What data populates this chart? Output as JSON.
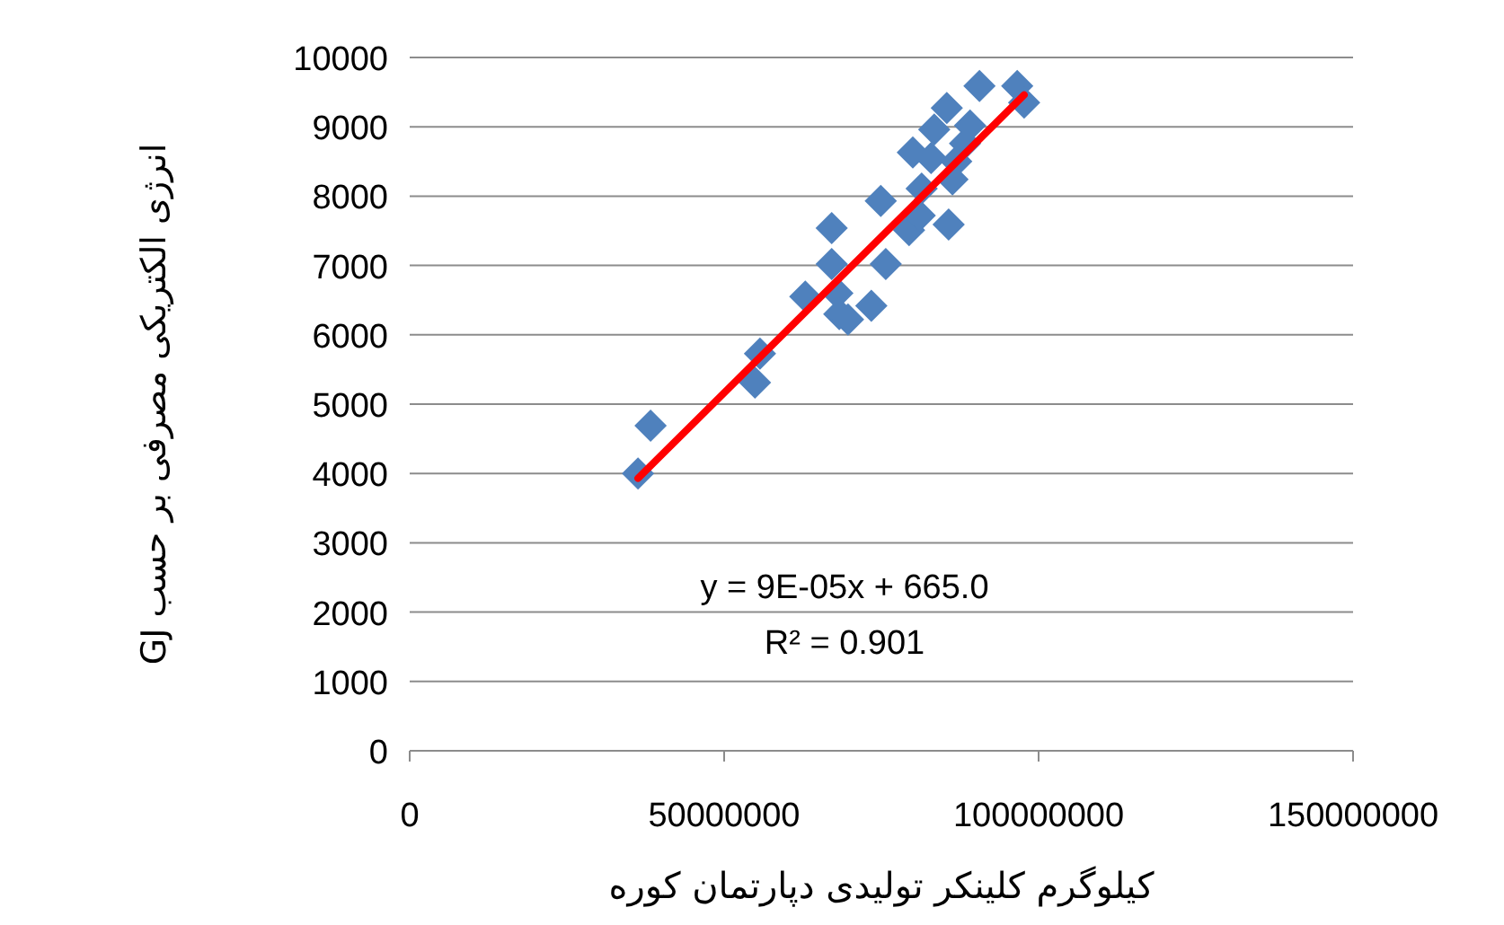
{
  "chart_data": {
    "type": "scatter",
    "xlabel": "کیلوگرم کلینکر تولیدی دپارتمان کوره",
    "ylabel": "انرژی الکتریکی مصرفی  بر حسب GJ",
    "xlim": [
      0,
      150000000
    ],
    "xticks": [
      0,
      50000000,
      100000000,
      150000000
    ],
    "ylim": [
      0,
      10000
    ],
    "yticks": [
      0,
      1000,
      2000,
      3000,
      4000,
      5000,
      6000,
      7000,
      8000,
      9000,
      10000
    ],
    "grid": "y",
    "annotations": [
      "y = 9E-05x + 665.0",
      "R² = 0.901"
    ],
    "series": [
      {
        "marker": "diamond",
        "color": "#4f81bd",
        "x": [
          36300000,
          38300000,
          54900000,
          55700000,
          62900000,
          67100000,
          67100000,
          68000000,
          68300000,
          69700000,
          73400000,
          74900000,
          75700000,
          79400000,
          80000000,
          81100000,
          81400000,
          82900000,
          83400000,
          85400000,
          85700000,
          86300000,
          86900000,
          88300000,
          89100000,
          90600000,
          96600000,
          97700000
        ],
        "values": [
          4000,
          4690,
          5310,
          5730,
          6550,
          7540,
          7020,
          6600,
          6300,
          6220,
          6420,
          7930,
          7020,
          7510,
          8630,
          7720,
          8110,
          8550,
          8960,
          9270,
          7590,
          8240,
          8500,
          8760,
          9020,
          9590,
          9590,
          9350
        ]
      },
      {
        "type": "line",
        "marker": "none",
        "color": "#ff0000",
        "x": [
          36300000,
          97700000
        ],
        "values": [
          3930,
          9460
        ]
      }
    ]
  }
}
